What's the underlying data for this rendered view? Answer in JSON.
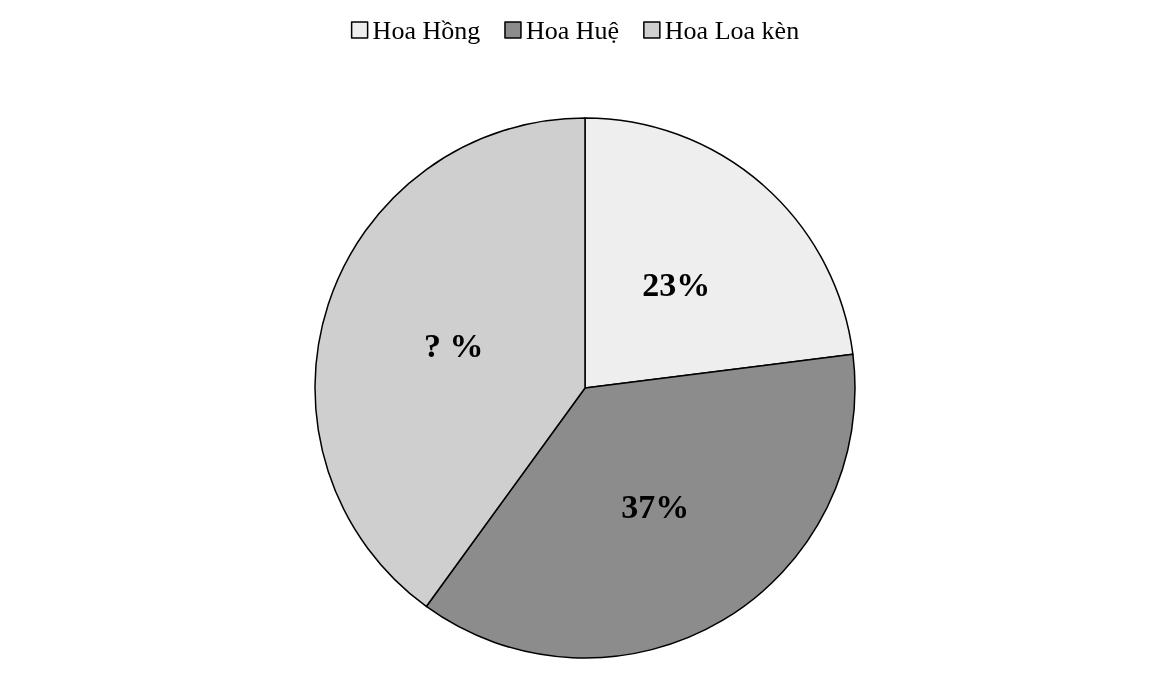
{
  "chart_data": {
    "type": "pie",
    "categories": [
      "Hoa Hồng",
      "Hoa Huệ",
      "Hoa Loa kèn"
    ],
    "values": [
      23,
      37,
      40
    ],
    "colors": [
      "#eeeeee",
      "#8c8c8c",
      "#cfcfcf"
    ],
    "value_labels": [
      "23%",
      "37%",
      "? %"
    ],
    "legend": "top"
  }
}
